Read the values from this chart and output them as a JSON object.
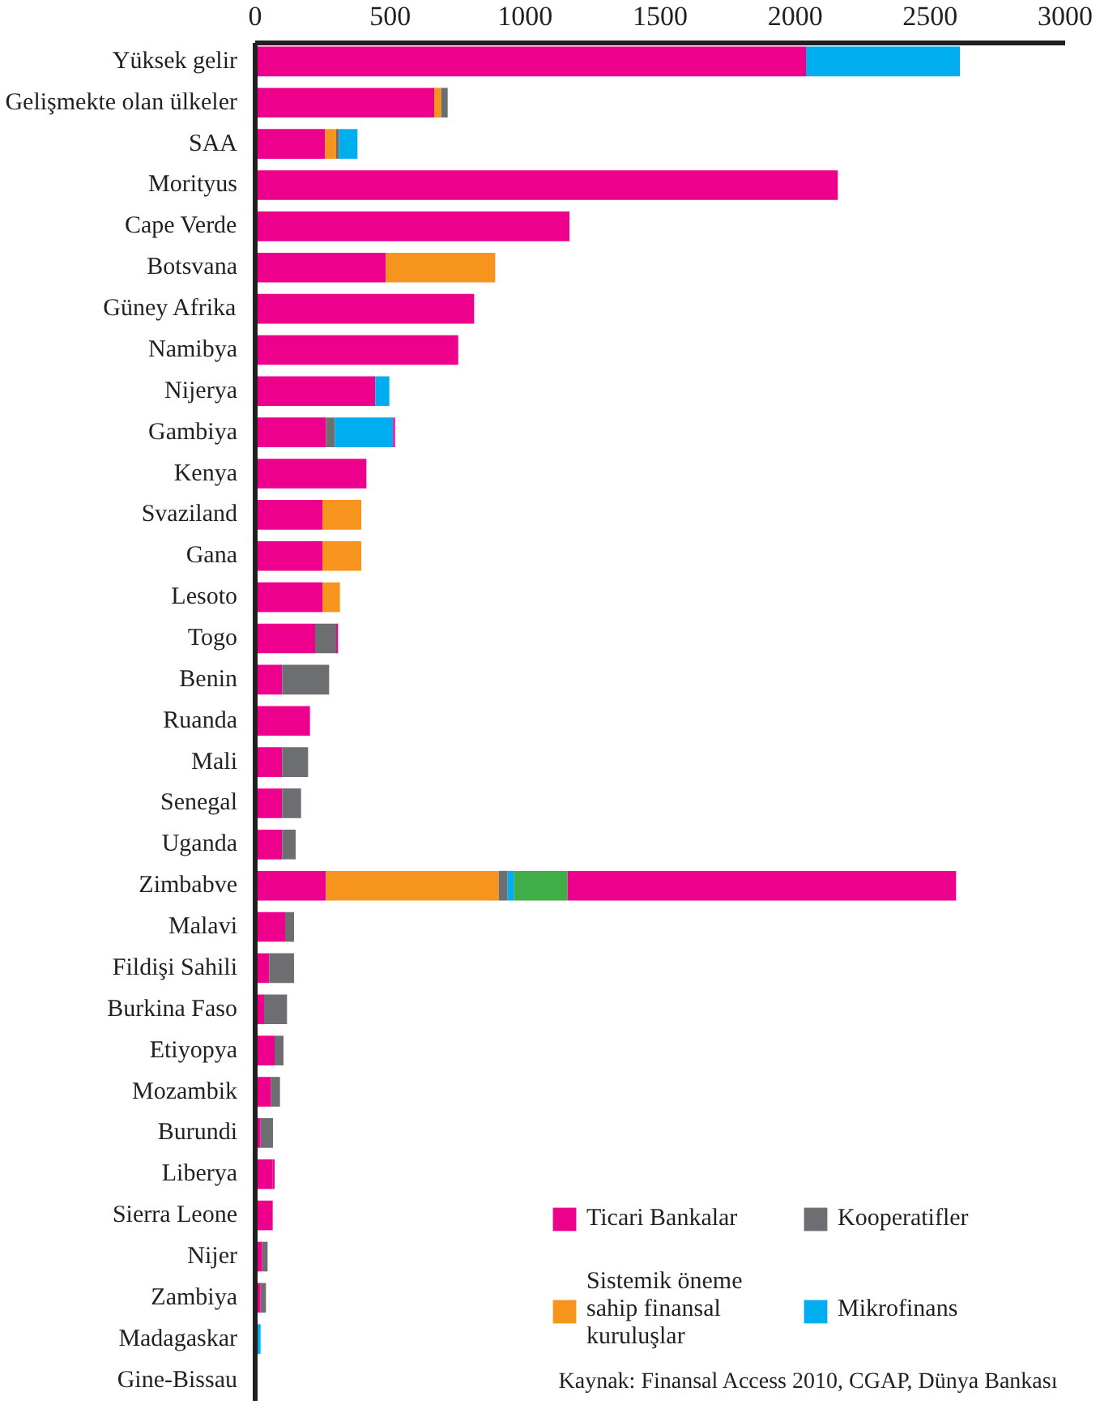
{
  "chart_data": {
    "type": "bar",
    "orientation": "horizontal",
    "stacked": true,
    "categories": [
      "Yüksek gelir",
      "Gelişmekte olan ülkeler",
      "SAA",
      "Morityus",
      "Cape Verde",
      "Botsvana",
      "Güney Afrika",
      "Namibya",
      "Nijerya",
      "Gambiya",
      "Kenya",
      "Svaziland",
      "Gana",
      "Lesoto",
      "Togo",
      "Benin",
      "Ruanda",
      "Mali",
      "Senegal",
      "Uganda",
      "Zimbabve",
      "Malavi",
      "Fildişi Sahili",
      "Burkina Faso",
      "Etiyopya",
      "Mozambik",
      "Burundi",
      "Liberya",
      "Sierra Leone",
      "Nijer",
      "Zambiya",
      "Madagaskar",
      "Gine-Bissau"
    ],
    "series": [
      {
        "name": "Ticari Bankalar",
        "color": "#ec008c",
        "values": [
          2040,
          663,
          259,
          2158,
          1164,
          484,
          811,
          752,
          445,
          262,
          412,
          249,
          249,
          249,
          222,
          100,
          203,
          100,
          100,
          100,
          262,
          111,
          52,
          33,
          72,
          59,
          20,
          65,
          65,
          26,
          20,
          null,
          null
        ]
      },
      {
        "name": "Sistemik öneme\nsahip finansal\nkuruluşlar",
        "color": "#f7941d",
        "values": [
          null,
          26,
          41,
          null,
          null,
          405,
          null,
          null,
          null,
          null,
          null,
          144,
          144,
          65,
          null,
          null,
          null,
          null,
          null,
          null,
          640,
          null,
          null,
          null,
          null,
          null,
          null,
          null,
          null,
          null,
          null,
          null,
          null
        ]
      },
      {
        "name": "Kooperatifler",
        "color": "#6d6e71",
        "values": [
          null,
          24,
          11,
          null,
          null,
          null,
          null,
          null,
          null,
          33,
          null,
          null,
          null,
          null,
          78,
          174,
          null,
          96,
          70,
          50,
          33,
          33,
          92,
          85,
          33,
          33,
          46,
          null,
          null,
          20,
          20,
          null,
          null
        ]
      },
      {
        "name": "Mikrofinans",
        "color": "#00aeef",
        "values": [
          570,
          null,
          68,
          null,
          null,
          null,
          null,
          null,
          52,
          216,
          null,
          null,
          null,
          null,
          null,
          null,
          null,
          null,
          null,
          null,
          24,
          null,
          null,
          null,
          null,
          null,
          null,
          null,
          null,
          null,
          null,
          20,
          null
        ]
      },
      {
        "color": "#3fae49",
        "values": [
          null,
          null,
          null,
          null,
          null,
          null,
          null,
          null,
          null,
          null,
          null,
          null,
          null,
          null,
          null,
          null,
          null,
          null,
          null,
          null,
          198,
          null,
          null,
          null,
          null,
          null,
          null,
          null,
          null,
          null,
          null,
          null,
          null
        ]
      },
      {
        "color": "#ec008c",
        "values": [
          null,
          null,
          null,
          null,
          null,
          null,
          null,
          null,
          null,
          7,
          null,
          null,
          null,
          null,
          7,
          null,
          null,
          null,
          null,
          null,
          1439,
          null,
          null,
          null,
          null,
          null,
          null,
          7,
          null,
          null,
          null,
          null,
          null
        ]
      }
    ],
    "xlim": [
      0,
      3000
    ],
    "xticks": [
      0,
      500,
      1000,
      1500,
      2000,
      2500,
      3000
    ],
    "grid": false,
    "legend": "bottom right",
    "annotations": [
      "Kaynak: Finansal Access 2010, CGAP, Dünya Bankası"
    ]
  }
}
